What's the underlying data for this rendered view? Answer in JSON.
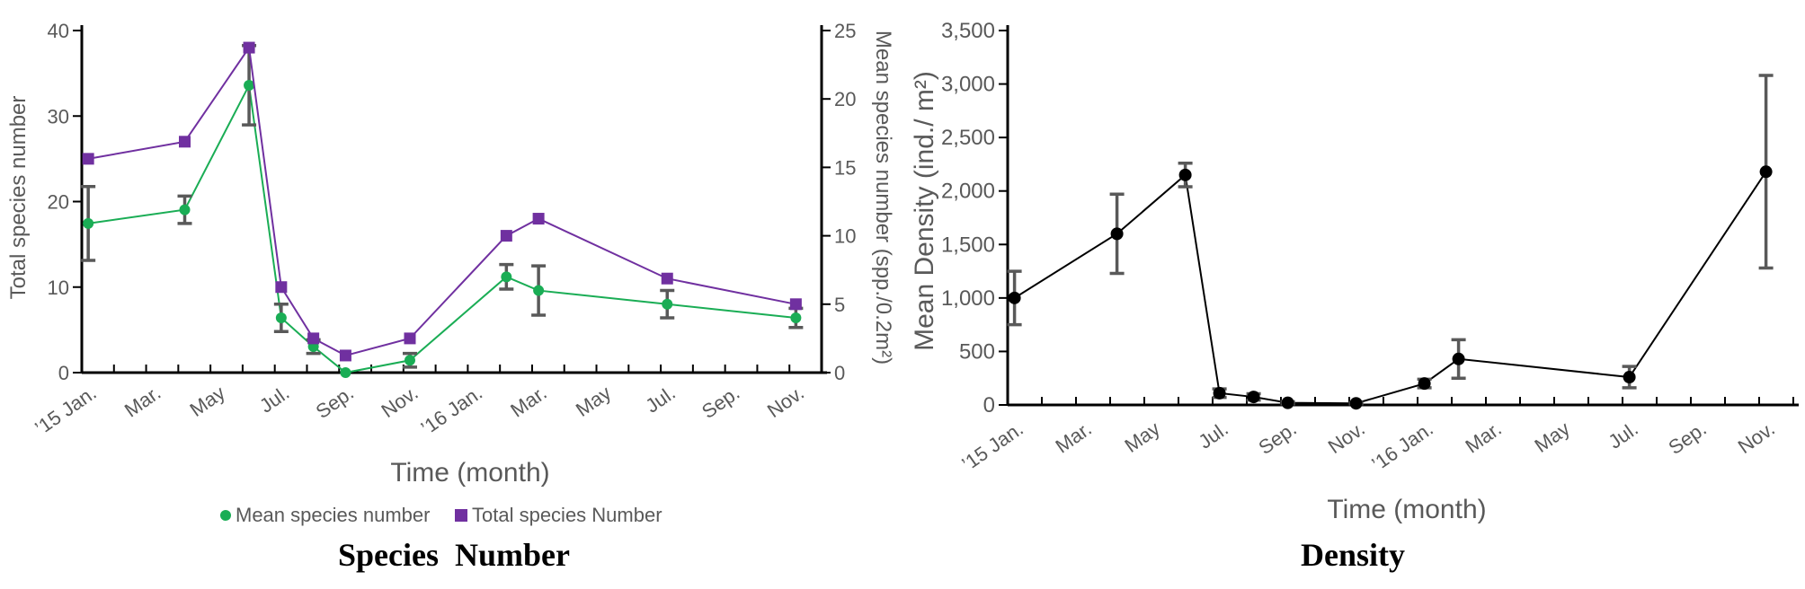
{
  "chart_data": [
    {
      "type": "line",
      "title": "",
      "caption": "Species  Number",
      "xlabel": "Time (month)",
      "ylabel": "Total species number",
      "ylabel_right": "Mean species number (spp./0.2m²)",
      "x_ticks": [
        "’15 Jan.",
        "Mar.",
        "May",
        "Jul.",
        "Sep.",
        "Nov.",
        "’16 Jan.",
        "Mar.",
        "May",
        "Jul.",
        "Sep.",
        "Nov."
      ],
      "x_range_months": [
        0,
        23
      ],
      "ylim": [
        0,
        40
      ],
      "y_ticks": [
        "0",
        "10",
        "20",
        "30",
        "40"
      ],
      "ylim_right": [
        0,
        25
      ],
      "y_ticks_right": [
        "0",
        "5",
        "10",
        "15",
        "20",
        "25"
      ],
      "legend": [
        "Mean species number",
        "Total species Number"
      ],
      "legend_position": "bottom",
      "series": [
        {
          "name": "Mean species number",
          "axis": "right",
          "color": "#1aad55",
          "x": [
            0.2,
            3.2,
            5.2,
            6.2,
            7.2,
            8.2,
            10.2,
            13.2,
            14.2,
            18.2,
            22.2
          ],
          "values": [
            10.9,
            11.9,
            21.0,
            4.0,
            1.9,
            0.0,
            0.9,
            7.0,
            6.0,
            5.0,
            4.0
          ],
          "error": [
            2.7,
            1.0,
            2.9,
            1.0,
            0.5,
            0.0,
            0.5,
            0.9,
            1.8,
            1.0,
            0.7
          ]
        },
        {
          "name": "Total species Number",
          "axis": "left",
          "color": "#7030a0",
          "x": [
            0.2,
            3.2,
            5.2,
            6.2,
            7.2,
            8.2,
            10.2,
            13.2,
            14.2,
            18.2,
            22.2
          ],
          "values": [
            25,
            27,
            38,
            10,
            4,
            2,
            4,
            16,
            18,
            11,
            8
          ]
        }
      ]
    },
    {
      "type": "line",
      "title": "",
      "caption": "Density",
      "xlabel": "Time (month)",
      "ylabel": "Mean Density (ind./ m²)",
      "x_ticks": [
        "’15 Jan.",
        "Mar.",
        "May",
        "Jul.",
        "Sep.",
        "Nov.",
        "’16 Jan.",
        "Mar.",
        "May",
        "Jul.",
        "Sep.",
        "Nov."
      ],
      "x_range_months": [
        0,
        23
      ],
      "ylim": [
        0,
        3500
      ],
      "y_ticks": [
        "0",
        "500",
        "1,000",
        "1,500",
        "2,000",
        "2,500",
        "3,000",
        "3,500"
      ],
      "series": [
        {
          "name": "Mean Density",
          "color": "#000000",
          "x": [
            0.2,
            3.2,
            5.2,
            6.2,
            7.2,
            8.2,
            10.2,
            12.2,
            13.2,
            18.2,
            22.2
          ],
          "values": [
            1000,
            1600,
            2150,
            110,
            75,
            20,
            15,
            200,
            430,
            260,
            2180
          ],
          "error": [
            250,
            370,
            110,
            40,
            30,
            10,
            5,
            40,
            180,
            100,
            900
          ]
        }
      ]
    }
  ]
}
